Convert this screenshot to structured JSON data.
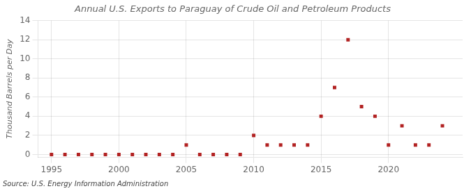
{
  "chart_data": {
    "type": "scatter",
    "title": "Annual U.S. Exports to Paraguay of Crude Oil and Petroleum Products",
    "y_label": "Thousand Barrels per Day",
    "annotations": [
      "Source: U.S. Energy Information Administration"
    ],
    "x": [
      1995,
      1996,
      1997,
      1998,
      1999,
      2000,
      2001,
      2002,
      2003,
      2004,
      2005,
      2006,
      2007,
      2008,
      2009,
      2010,
      2011,
      2012,
      2013,
      2014,
      2015,
      2016,
      2017,
      2018,
      2019,
      2020,
      2021,
      2022,
      2023,
      2024
    ],
    "values": [
      0,
      0,
      0,
      0,
      0,
      0,
      0,
      0,
      0,
      0,
      1,
      0,
      0,
      0,
      0,
      2,
      1,
      1,
      1,
      1,
      4,
      7,
      12,
      5,
      4,
      1,
      3,
      1,
      1,
      3
    ],
    "color": "#b22222",
    "marker": "square",
    "xlim": [
      1994.0,
      2025.5
    ],
    "xticks": [
      1995,
      2000,
      2005,
      2010,
      2015,
      2020
    ],
    "ylim": [
      -0.3,
      14
    ],
    "yticks": [
      0,
      2,
      4,
      6,
      8,
      10,
      12,
      14
    ],
    "grid": true
  }
}
